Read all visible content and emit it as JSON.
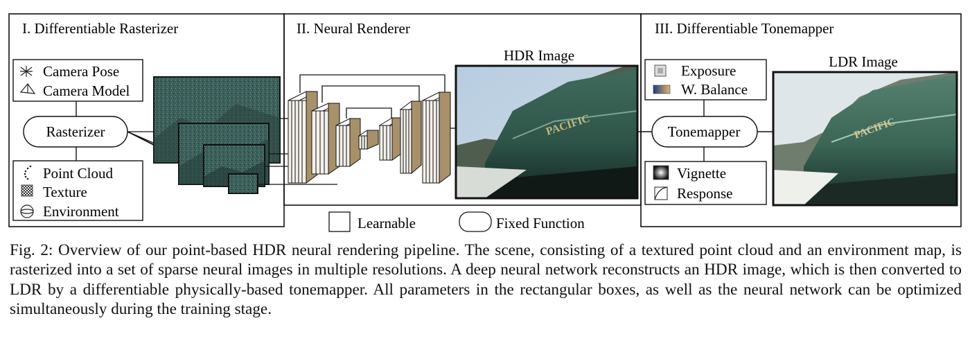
{
  "sections": [
    {
      "title": "I. Differentiable Rasterizer"
    },
    {
      "title": "II. Neural Renderer"
    },
    {
      "title": "III. Differentiable Tonemapper"
    }
  ],
  "rasterizer": {
    "top_box": [
      {
        "label": "Camera Pose",
        "icon": "star-icon"
      },
      {
        "label": "Camera Model",
        "icon": "camera-frustum-icon"
      }
    ],
    "node": "Rasterizer",
    "bottom_box": [
      {
        "label": "Point Cloud",
        "icon": "dotted-arc-icon"
      },
      {
        "label": "Texture",
        "icon": "checker-icon"
      },
      {
        "label": "Environment",
        "icon": "sphere-icon"
      }
    ]
  },
  "renderer": {
    "output_label": "HDR Image"
  },
  "tonemapper": {
    "top_box": [
      {
        "label": "Exposure",
        "icon": "exposure-icon"
      },
      {
        "label": "W. Balance",
        "icon": "gradient-icon"
      }
    ],
    "node": "Tonemapper",
    "bottom_box": [
      {
        "label": "Vignette",
        "icon": "vignette-icon"
      },
      {
        "label": "Response",
        "icon": "curve-icon"
      }
    ],
    "output_label": "LDR Image"
  },
  "legend": [
    {
      "label": "Learnable",
      "shape": "square"
    },
    {
      "label": "Fixed Function",
      "shape": "rounded"
    }
  ],
  "photo_text": "PACIFIC",
  "caption": "Fig. 2: Overview of our point-based HDR neural rendering pipeline. The scene, consisting of a textured point cloud and an environment map, is rasterized into a set of sparse neural images in multiple resolutions. A deep neural network reconstructs an HDR image, which is then converted to LDR by a differentiable physically-based tonemapper. All parameters in the rectangular boxes, as well as the neural network can be optimized simultaneously during the training stage."
}
